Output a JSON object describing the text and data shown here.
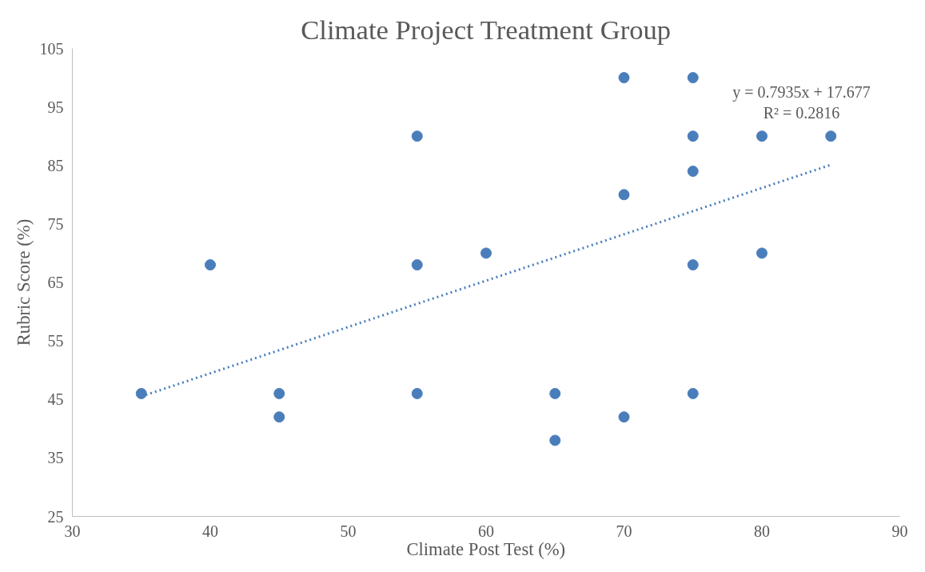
{
  "chart_data": {
    "type": "scatter",
    "title": "Climate Project Treatment Group",
    "xlabel": "Climate Post Test (%)",
    "ylabel": "Rubric Score (%)",
    "xlim": [
      30,
      90
    ],
    "xticks": [
      30,
      40,
      50,
      60,
      70,
      80,
      90
    ],
    "ylim": [
      25,
      105
    ],
    "yticks": [
      25,
      35,
      45,
      55,
      65,
      75,
      85,
      95,
      105
    ],
    "grid": false,
    "marker": "circle",
    "series": [
      {
        "color": "#4a7ebb",
        "x": [
          35,
          40,
          45,
          45,
          55,
          55,
          55,
          60,
          65,
          65,
          70,
          70,
          70,
          75,
          75,
          75,
          75,
          75,
          80,
          80,
          85
        ],
        "values": [
          46,
          68,
          46,
          42,
          90,
          68,
          46,
          70,
          46,
          38,
          100,
          80,
          42,
          100,
          90,
          84,
          68,
          46,
          90,
          70,
          90
        ]
      },
      {
        "type": "line",
        "color": "#4a7ebb",
        "line_style": "dotted",
        "marker": "none",
        "x": [
          35,
          85
        ],
        "values": [
          45.5,
          85.1
        ]
      }
    ],
    "annotations": [
      "y = 0.7935x + 17.677",
      "R² = 0.2816"
    ]
  }
}
